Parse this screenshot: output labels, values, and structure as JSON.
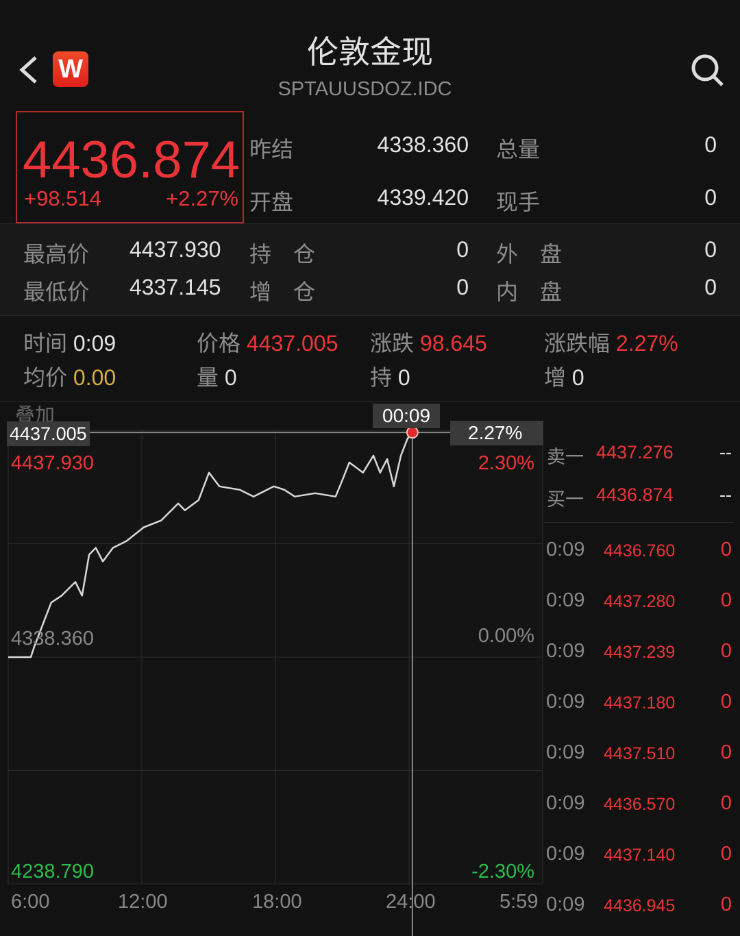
{
  "header": {
    "title": "伦敦金现",
    "code": "SPTAUUSDOZ.IDC",
    "logo_text": "W",
    "back_icon": "chevron-left-icon",
    "search_icon": "search-icon"
  },
  "quote": {
    "price": "4436.874",
    "change": "+98.514",
    "change_pct": "+2.27%"
  },
  "stats": [
    {
      "label": "昨结",
      "value": "4338.360"
    },
    {
      "label": "总量",
      "value": "0"
    },
    {
      "label": "开盘",
      "value": "4339.420"
    },
    {
      "label": "现手",
      "value": "0"
    },
    {
      "label": "最高价",
      "value": "4437.930"
    },
    {
      "label": "持　仓",
      "value": "0"
    },
    {
      "label": "外　盘",
      "value": "0"
    },
    {
      "label": "最低价",
      "value": "4337.145"
    },
    {
      "label": "增　仓",
      "value": "0"
    },
    {
      "label": "内　盘",
      "value": "0"
    }
  ],
  "crosshair_info": {
    "time_label": "时间",
    "time": "0:09",
    "price_label": "价格",
    "price": "4437.005",
    "chg_label": "涨跌",
    "chg": "98.645",
    "pct_label": "涨跌幅",
    "pct": "2.27%",
    "avg_label": "均价",
    "avg": "0.00",
    "vol_label": "量",
    "vol": "0",
    "hold_label": "持",
    "hold": "0",
    "inc_label": "增",
    "inc": "0"
  },
  "overlay_label": "叠加",
  "chart_data": {
    "type": "line",
    "y_ticks_left": [
      "4437.930",
      "4338.360",
      "4238.790"
    ],
    "y_ticks_right": [
      "2.30%",
      "0.00%",
      "-2.30%"
    ],
    "x_ticks": [
      "6:00",
      "12:00",
      "18:00",
      "24:00",
      "5:59"
    ],
    "ylim": [
      4238.79,
      4437.93
    ],
    "prev_close": 4338.36,
    "crosshair": {
      "time": "00:09",
      "price": "4437.005",
      "pct": "2.27%"
    },
    "points": [
      [
        "6:00",
        4338.36
      ],
      [
        "7:01",
        4338.36
      ],
      [
        "7:10",
        4342.86
      ],
      [
        "7:56",
        4362.35
      ],
      [
        "8:24",
        4365.35
      ],
      [
        "9:01",
        4371.35
      ],
      [
        "9:19",
        4365.35
      ],
      [
        "9:38",
        4383.35
      ],
      [
        "9:56",
        4386.34
      ],
      [
        "10:15",
        4380.35
      ],
      [
        "10:42",
        4386.34
      ],
      [
        "11:19",
        4389.34
      ],
      [
        "12:05",
        4395.34
      ],
      [
        "12:52",
        4398.34
      ],
      [
        "13:38",
        4405.83
      ],
      [
        "13:56",
        4402.83
      ],
      [
        "14:33",
        4407.33
      ],
      [
        "15:01",
        4419.33
      ],
      [
        "15:29",
        4413.33
      ],
      [
        "16:24",
        4411.83
      ],
      [
        "17:01",
        4408.83
      ],
      [
        "17:56",
        4413.33
      ],
      [
        "18:24",
        4411.83
      ],
      [
        "18:52",
        4408.83
      ],
      [
        "19:47",
        4410.33
      ],
      [
        "20:42",
        4408.83
      ],
      [
        "21:01",
        4416.33
      ],
      [
        "21:19",
        4423.83
      ],
      [
        "21:56",
        4419.33
      ],
      [
        "22:24",
        4426.83
      ],
      [
        "22:42",
        4419.33
      ],
      [
        "23:01",
        4425.33
      ],
      [
        "23:19",
        4413.33
      ],
      [
        "23:38",
        4426.83
      ],
      [
        "23:56",
        4434.33
      ],
      [
        "00:09",
        4437.005
      ]
    ]
  },
  "orderbook": [
    {
      "label": "卖一",
      "price": "4437.276",
      "vol": "--"
    },
    {
      "label": "买一",
      "price": "4436.874",
      "vol": "--"
    }
  ],
  "ticks": [
    {
      "time": "0:09",
      "price": "4436.760",
      "vol": "0"
    },
    {
      "time": "0:09",
      "price": "4437.280",
      "vol": "0"
    },
    {
      "time": "0:09",
      "price": "4437.239",
      "vol": "0"
    },
    {
      "time": "0:09",
      "price": "4437.180",
      "vol": "0"
    },
    {
      "time": "0:09",
      "price": "4437.510",
      "vol": "0"
    },
    {
      "time": "0:09",
      "price": "4436.570",
      "vol": "0"
    },
    {
      "time": "0:09",
      "price": "4437.140",
      "vol": "0"
    },
    {
      "time": "0:09",
      "price": "4436.945",
      "vol": "0"
    }
  ]
}
